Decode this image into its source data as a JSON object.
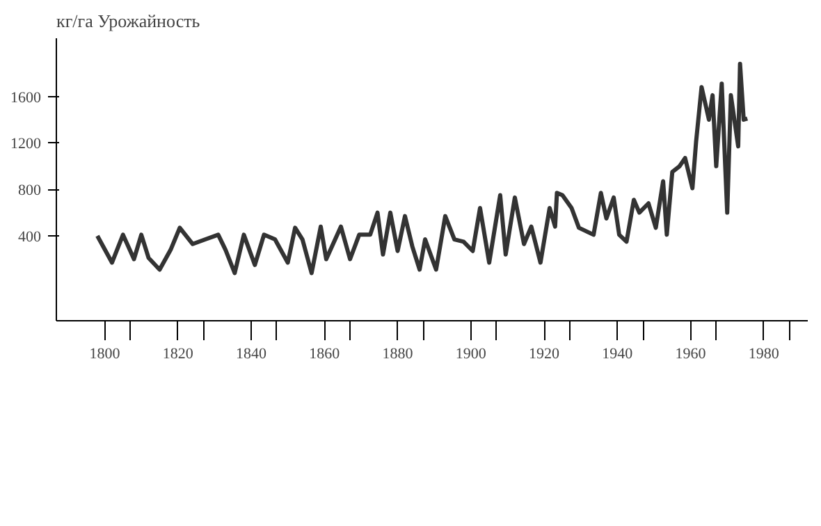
{
  "chart_data": {
    "type": "line",
    "ylabel": "кг/га Урожайность",
    "x": [
      1798,
      1802,
      1805,
      1808,
      1810,
      1812,
      1815,
      1818,
      1820.5,
      1824,
      1827.5,
      1831,
      1833,
      1835.5,
      1838,
      1841,
      1843.5,
      1846.5,
      1850,
      1852,
      1854,
      1856.5,
      1859,
      1860.5,
      1864.5,
      1867,
      1869.5,
      1872.5,
      1874.5,
      1876,
      1878,
      1880,
      1882,
      1884,
      1886,
      1887.5,
      1890.5,
      1893,
      1895.5,
      1898,
      1900.5,
      1902.5,
      1905,
      1908,
      1909.5,
      1912,
      1914.5,
      1916.5,
      1919,
      1921.5,
      1923,
      1923.5,
      1925,
      1927.5,
      1929.5,
      1933.5,
      1935.5,
      1937,
      1939,
      1940.5,
      1942.5,
      1944.5,
      1946,
      1948.5,
      1950.5,
      1952.5,
      1953.5,
      1955,
      1957,
      1958.5,
      1960.5,
      1961.5,
      1963,
      1965,
      1966,
      1967,
      1968.5,
      1970,
      1971,
      1973,
      1973.5,
      1974.5,
      1975.5
    ],
    "series": [
      {
        "color": "#333333",
        "values": [
          400,
          170,
          410,
          200,
          410,
          210,
          110,
          280,
          470,
          330,
          370,
          410,
          280,
          80,
          410,
          150,
          410,
          370,
          170,
          470,
          370,
          80,
          480,
          200,
          480,
          200,
          410,
          410,
          600,
          240,
          600,
          270,
          570,
          310,
          110,
          370,
          110,
          570,
          370,
          350,
          270,
          640,
          170,
          750,
          240,
          730,
          330,
          480,
          170,
          640,
          480,
          770,
          750,
          640,
          470,
          410,
          770,
          550,
          730,
          410,
          350,
          710,
          600,
          680,
          470,
          870,
          410,
          950,
          1000,
          1070,
          810,
          1210,
          1680,
          1400,
          1610,
          1000,
          1710,
          600,
          1610,
          1170,
          1880,
          1400,
          1410
        ]
      }
    ],
    "xlim": [
      1786.8,
      1992
    ],
    "ylim": [
      -330,
      2100
    ],
    "xticks": [
      1800,
      1820,
      1840,
      1860,
      1880,
      1900,
      1920,
      1940,
      1960,
      1980,
      {
        "value": 1807,
        "label": null
      },
      {
        "value": 1827,
        "label": null
      },
      {
        "value": 1847,
        "label": null
      },
      {
        "value": 1867,
        "label": null
      },
      {
        "value": 1887,
        "label": null
      },
      {
        "value": 1907,
        "label": null
      },
      {
        "value": 1927,
        "label": null
      },
      {
        "value": 1947,
        "label": null
      },
      {
        "value": 1967,
        "label": null
      },
      {
        "value": 1987,
        "label": null
      }
    ],
    "yticks": [
      400,
      800,
      1200,
      1600
    ],
    "grid": false,
    "marker": "none",
    "line_style": "solid"
  }
}
